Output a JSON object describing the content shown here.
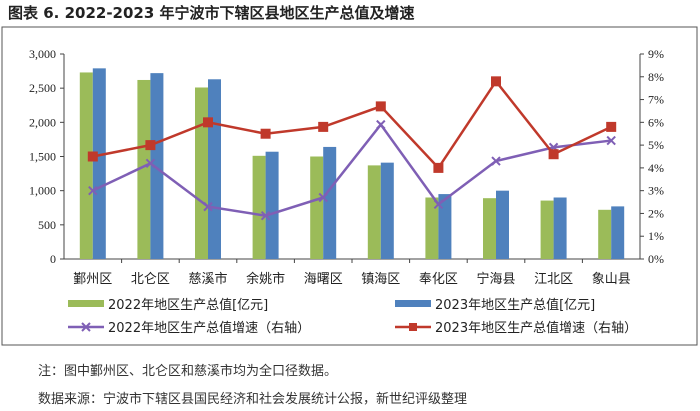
{
  "chart_data": {
    "type": "bar",
    "title": "图表 6.   2022-2023 年宁波市下辖区县地区生产总值及增速",
    "categories": [
      "鄞州区",
      "北仑区",
      "慈溪市",
      "余姚市",
      "海曙区",
      "镇海区",
      "奉化区",
      "宁海县",
      "江北区",
      "象山县"
    ],
    "y_left": {
      "range": [
        0,
        3000
      ],
      "ticks": [
        "0",
        "500",
        "1,000",
        "1,500",
        "2,000",
        "2,500",
        "3,000"
      ]
    },
    "y_right": {
      "range": [
        0,
        9
      ],
      "ticks": [
        "0%",
        "1%",
        "2%",
        "3%",
        "4%",
        "5%",
        "6%",
        "7%",
        "8%",
        "9%"
      ]
    },
    "series": [
      {
        "name": "2022年地区生产总值[亿元]",
        "type": "bar",
        "axis": "left",
        "color": "#9BBB59",
        "values": [
          2730,
          2620,
          2510,
          1510,
          1500,
          1370,
          900,
          890,
          855,
          720
        ]
      },
      {
        "name": "2023年地区生产总值[亿元]",
        "type": "bar",
        "axis": "left",
        "color": "#4F81BD",
        "values": [
          2790,
          2720,
          2630,
          1570,
          1640,
          1410,
          950,
          1000,
          900,
          770
        ]
      },
      {
        "name": "2022年地区生产总值增速（右轴）",
        "type": "line",
        "axis": "right",
        "marker": "x",
        "color": "#7F5FB5",
        "values": [
          3.0,
          4.2,
          2.3,
          1.9,
          2.7,
          5.9,
          2.4,
          4.3,
          4.9,
          5.2
        ]
      },
      {
        "name": "2023年地区生产总值增速（右轴）",
        "type": "line",
        "axis": "right",
        "marker": "square",
        "color": "#C0392B",
        "values": [
          4.5,
          5.0,
          6.0,
          5.5,
          5.8,
          6.7,
          4.0,
          7.8,
          4.6,
          5.8
        ]
      }
    ],
    "legend": "bottom",
    "grid": false
  },
  "notes": {
    "note": "注：图中鄞州区、北仑区和慈溪市均为全口径数据。",
    "source": "数据来源：宁波市下辖区县国民经济和社会发展统计公报，新世纪评级整理"
  }
}
